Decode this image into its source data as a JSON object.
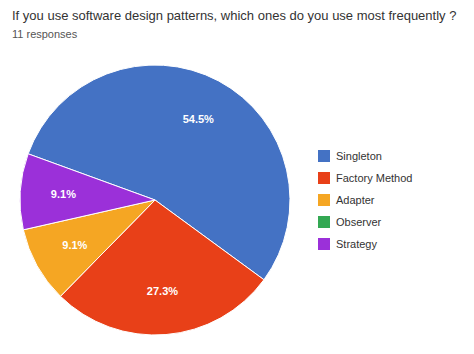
{
  "chart_data": {
    "type": "pie",
    "title": "If you use software design patterns, which ones do you use most frequently ?",
    "subtitle": "11 responses",
    "categories": [
      "Singleton",
      "Factory Method",
      "Adapter",
      "Observer",
      "Strategy"
    ],
    "values": [
      54.5,
      27.3,
      9.1,
      0.0,
      9.1
    ],
    "value_labels": [
      "54.5%",
      "27.3%",
      "9.1%",
      null,
      "9.1%"
    ],
    "colors": [
      "#4472C4",
      "#E84018",
      "#F5A623",
      "#33A853",
      "#9B30D9"
    ],
    "data_labels": true
  }
}
